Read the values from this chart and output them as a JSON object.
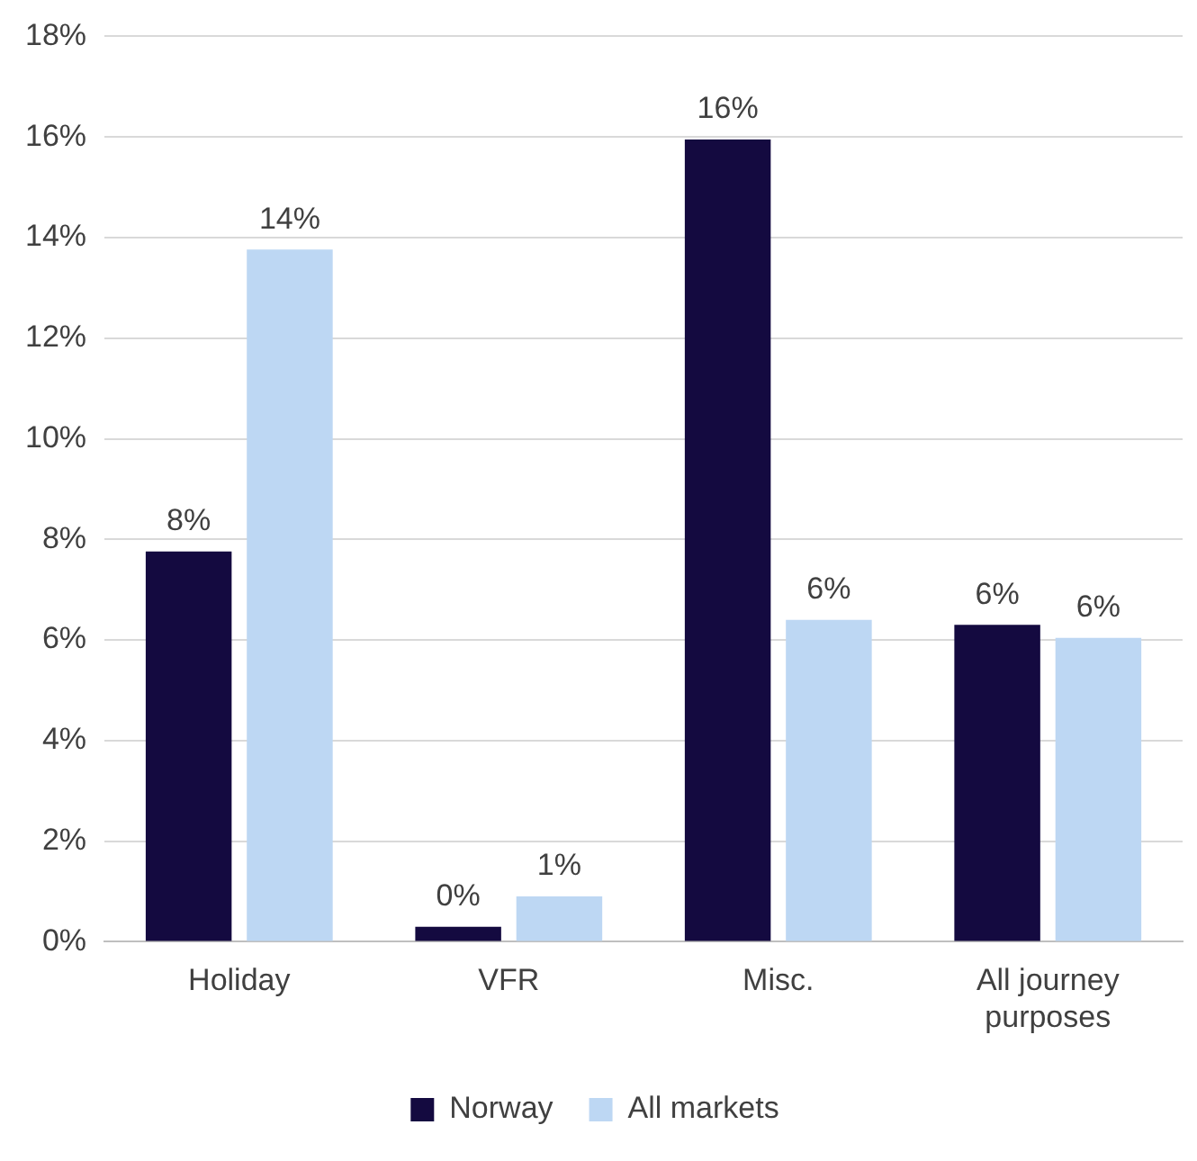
{
  "chart_data": {
    "type": "bar",
    "categories": [
      "Holiday",
      "VFR",
      "Misc.",
      "All journey purposes"
    ],
    "series": [
      {
        "name": "Norway",
        "color": "#140a40",
        "values": [
          7.76,
          0.3,
          15.95,
          6.3
        ],
        "value_labels": [
          "8%",
          "0%",
          "16%",
          "6%"
        ]
      },
      {
        "name": "All markets",
        "color": "#bdd7f3",
        "values": [
          13.76,
          0.9,
          6.4,
          6.04
        ],
        "value_labels": [
          "14%",
          "1%",
          "6%",
          "6%"
        ]
      }
    ],
    "ylim": [
      0,
      18
    ],
    "yticks": [
      {
        "value": 0,
        "label": "0%"
      },
      {
        "value": 2,
        "label": "2%"
      },
      {
        "value": 4,
        "label": "4%"
      },
      {
        "value": 6,
        "label": "6%"
      },
      {
        "value": 8,
        "label": "8%"
      },
      {
        "value": 10,
        "label": "10%"
      },
      {
        "value": 12,
        "label": "12%"
      },
      {
        "value": 14,
        "label": "14%"
      },
      {
        "value": 16,
        "label": "16%"
      },
      {
        "value": 18,
        "label": "18%"
      }
    ],
    "grid": "y",
    "legend": "bottom"
  }
}
